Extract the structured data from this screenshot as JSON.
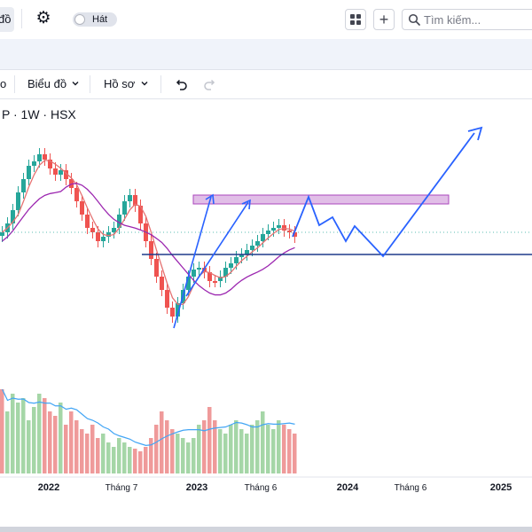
{
  "topbar": {
    "partial_button_label": "đồ",
    "toggle_label": "Hát",
    "search_placeholder": "Tìm kiếm...",
    "icons": [
      "gear-icon",
      "layout-grid-icon",
      "plus-icon",
      "search-icon"
    ]
  },
  "toolbar": {
    "partial_left_label": "o",
    "chart_menu_label": "Biểu đồ",
    "profile_menu_label": "Hồ sơ",
    "icons": [
      "chevron-down-icon",
      "undo-icon",
      "redo-icon"
    ]
  },
  "colors": {
    "up": "#26a69a",
    "down": "#ef5350",
    "ma_fast": "#e57373",
    "ma_slow": "#9c27b0",
    "volume_ma": "#42a5f5",
    "projection": "#2962ff",
    "zone_fill": "#e1bee7",
    "zone_border": "#ab47bc",
    "support": "#1e3a8a"
  },
  "chart_data": {
    "type": "candlestick",
    "title": "P · 1W · HSX",
    "time_axis_labels": [
      "2022",
      "Tháng 7",
      "2023",
      "Tháng 6",
      "2024",
      "Tháng 6",
      "2025"
    ],
    "candles": [],
    "volume": [],
    "notes": "Weekly candlestick chart with fast and slow moving averages, volume histogram with moving average, a horizontal support line, a resistance zone rectangle, an upward trend arrow pair and a hand-drawn zig-zag projection ending in an upward arrow."
  }
}
